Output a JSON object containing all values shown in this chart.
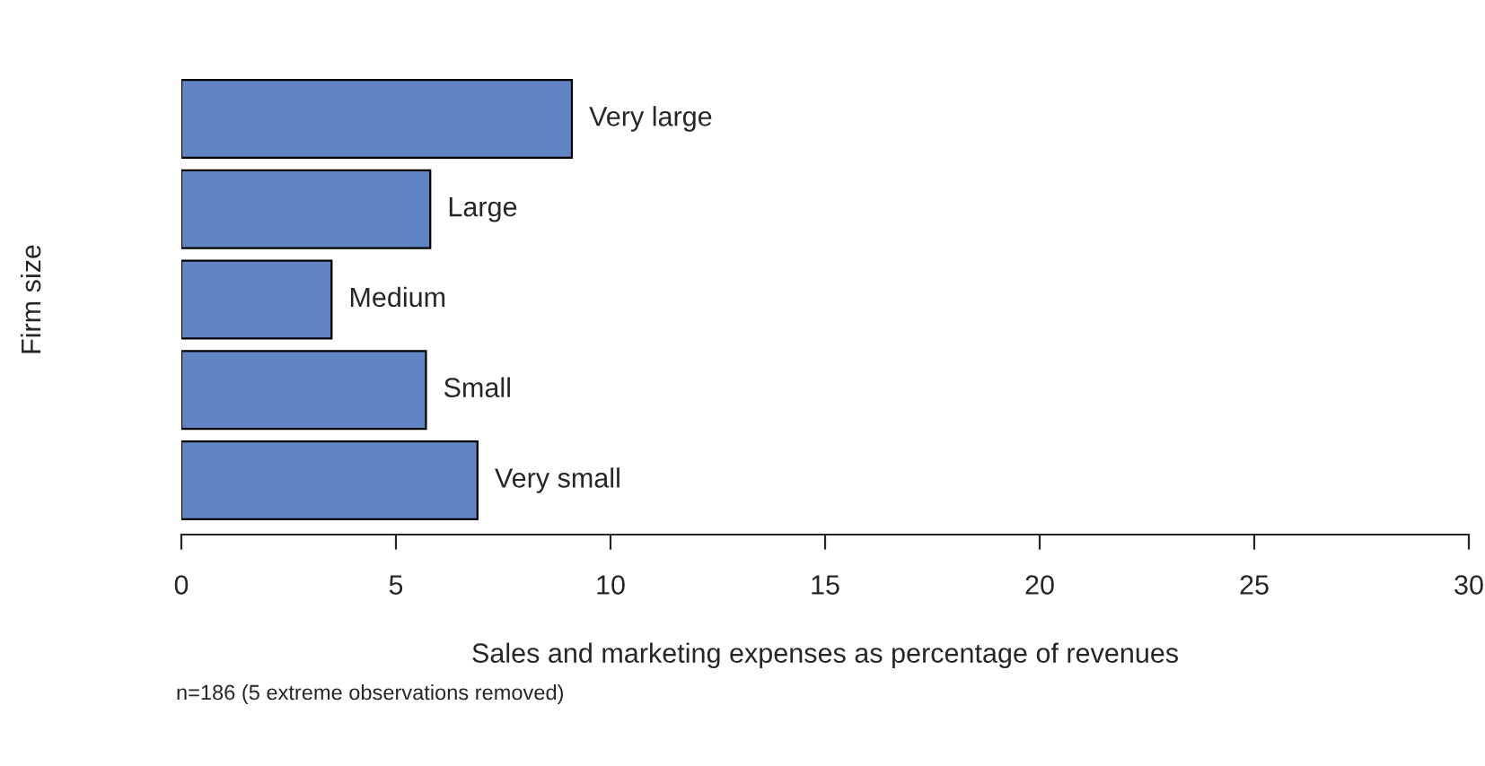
{
  "chart_data": {
    "type": "bar",
    "orientation": "horizontal",
    "categories": [
      "Very large",
      "Large",
      "Medium",
      "Small",
      "Very small"
    ],
    "values": [
      9.1,
      5.8,
      3.5,
      5.7,
      6.9
    ],
    "color": "#6185c4",
    "xlim": [
      0,
      30
    ],
    "xticks": [
      0,
      5,
      10,
      15,
      20,
      25,
      30
    ],
    "tick_labels": "x",
    "grid": false,
    "legend": false,
    "xlabel": "Sales and marketing expenses as percentage of revenues",
    "ylabel": "Firm size",
    "annotations": [
      "n=186 (5 extreme observations removed)"
    ]
  }
}
